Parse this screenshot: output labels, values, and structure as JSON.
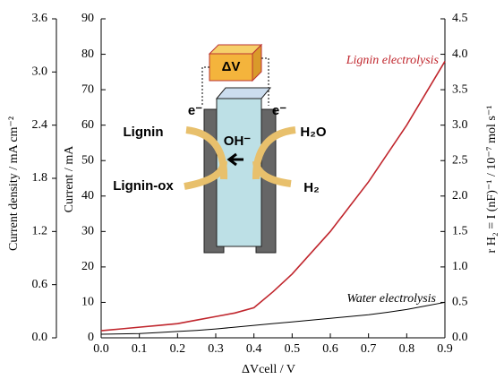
{
  "chart_data": {
    "type": "line",
    "x_label": "ΔVcell / V",
    "y_label": "Current / mA",
    "y2_label": "r H₂ = I (nF)⁻¹ / 10⁻⁷ mol s⁻¹",
    "y3_label": "Current density / mA cm⁻²",
    "x": [
      0.0,
      0.05,
      0.1,
      0.15,
      0.2,
      0.25,
      0.3,
      0.35,
      0.4,
      0.45,
      0.5,
      0.55,
      0.6,
      0.65,
      0.7,
      0.75,
      0.8,
      0.85,
      0.9
    ],
    "series": [
      {
        "name": "Lignin electrolysis",
        "color": "#c0262d",
        "values": [
          2,
          2.5,
          3,
          3.5,
          4,
          5,
          6,
          7,
          8.5,
          13,
          18,
          24,
          30,
          37,
          44,
          52,
          60,
          69,
          78
        ]
      },
      {
        "name": "Water electrolysis",
        "color": "#000000",
        "values": [
          1,
          1.1,
          1.2,
          1.5,
          1.8,
          2.1,
          2.5,
          3,
          3.5,
          4,
          4.5,
          5,
          5.5,
          6,
          6.5,
          7.2,
          8,
          9,
          10
        ]
      }
    ],
    "xlim": [
      0,
      0.9
    ],
    "xticks": [
      {
        "value": 0,
        "label": "0.0"
      },
      0.1,
      0.2,
      0.3,
      0.4,
      0.5,
      0.6,
      0.7,
      0.8,
      0.9
    ],
    "ylim": [
      0,
      90
    ],
    "yticks": [
      0,
      10,
      20,
      30,
      40,
      50,
      60,
      70,
      80,
      90
    ],
    "y2lim": [
      0,
      4.5
    ],
    "y2ticks": [
      {
        "value": 0,
        "label": "0.0"
      },
      0.5,
      {
        "value": 1,
        "label": "1.0"
      },
      1.5,
      {
        "value": 2,
        "label": "2.0"
      },
      2.5,
      {
        "value": 3,
        "label": "3.0"
      },
      3.5,
      {
        "value": 4,
        "label": "4.0"
      },
      4.5
    ],
    "y3lim": [
      0,
      3.6
    ],
    "y3ticks": [
      {
        "value": 0,
        "label": "0.0"
      },
      0.6,
      1.2,
      1.8,
      2.4,
      {
        "value": 3,
        "label": "3.0"
      },
      3.6
    ],
    "inset": {
      "dv": "ΔV",
      "e_left": "e⁻",
      "e_right": "e⁻",
      "lignin": "Lignin",
      "water": "H₂O",
      "oh": "OH⁻",
      "lignin_ox": "Lignin-ox",
      "h2": "H₂"
    }
  }
}
